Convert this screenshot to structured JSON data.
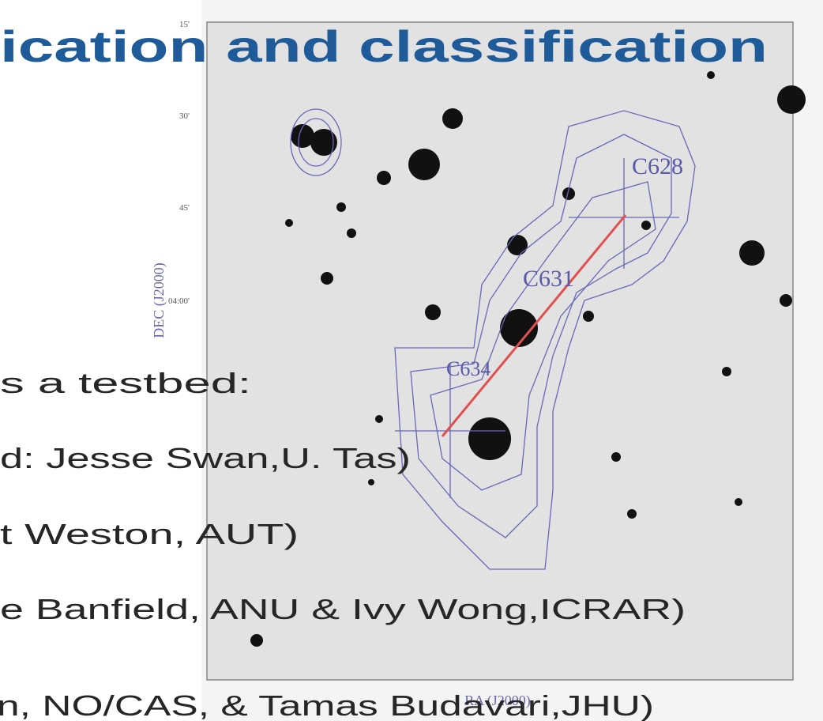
{
  "slide": {
    "title": "ication and classification",
    "lines": [
      "s a testbed:",
      "d: Jesse Swan,U. Tas)",
      "t Weston, AUT)",
      "e Banfield, ANU & Ivy Wong,ICRAR)",
      "n, NO/CAS, & Tamas Budavari,JHU)"
    ],
    "figure": {
      "sources": [
        "C628",
        "C631",
        "C634"
      ],
      "y_label": "DEC (J2000)",
      "x_label": "RA (J2000)",
      "y_ticks": [
        "15'",
        "30'",
        "45'",
        "04:00'"
      ]
    }
  }
}
